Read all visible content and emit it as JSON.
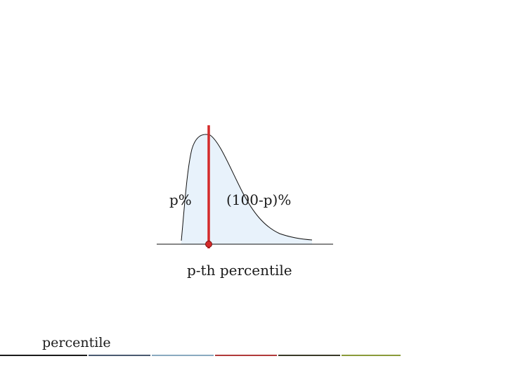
{
  "diagram": {
    "left_area_label": "p%",
    "right_area_label": "(100-p)%",
    "point_label": "p-th percentile"
  },
  "footer": {
    "title": "percentile",
    "stripe_colors": [
      "#1a1a1a",
      "#4a5a70",
      "#8aaac0",
      "#b03a3a",
      "#3a3a28",
      "#8a9a3a"
    ]
  },
  "colors": {
    "curve_fill": "#e8f2fb",
    "curve_stroke": "#111111",
    "marker": "#d42a2a",
    "baseline": "#111111"
  }
}
